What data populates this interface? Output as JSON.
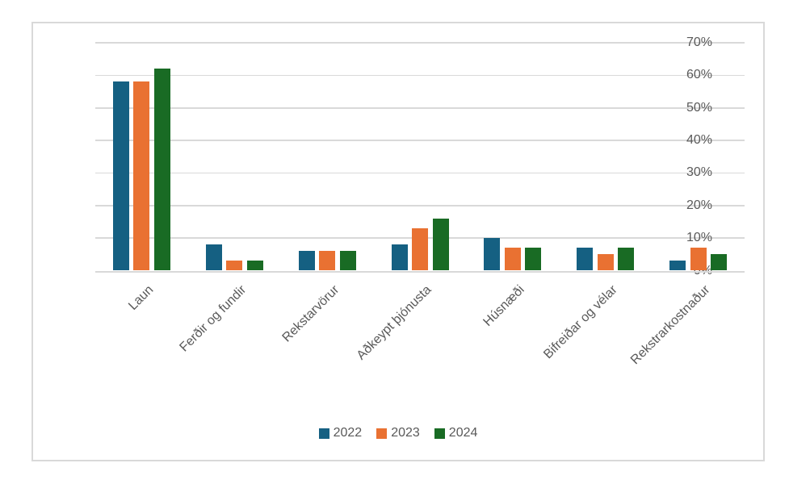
{
  "chart_data": {
    "type": "bar",
    "title": "",
    "categories": [
      "Laun",
      "Ferðir og fundir",
      "Rekstarvörur",
      "Aðkeypt þjónusta",
      "Húsnæði",
      "Bifreiðar og vélar",
      "Rekstrarkostnaður"
    ],
    "series": [
      {
        "name": "2022",
        "color": "#156082",
        "values": [
          58,
          8,
          6,
          8,
          10,
          7,
          3
        ]
      },
      {
        "name": "2023",
        "color": "#E97132",
        "values": [
          58,
          3,
          6,
          13,
          7,
          5,
          7
        ]
      },
      {
        "name": "2024",
        "color": "#196B24",
        "values": [
          62,
          3,
          6,
          16,
          7,
          7,
          5
        ]
      }
    ],
    "y_axis": {
      "ticks": [
        "0%",
        "10%",
        "20%",
        "30%",
        "40%",
        "50%",
        "60%",
        "70%"
      ],
      "min": 0,
      "max": 70,
      "step": 10,
      "unit": "%"
    },
    "x_label_rotation_deg": -45,
    "grid": true,
    "legend": {
      "position": "bottom",
      "items": [
        "2022",
        "2023",
        "2024"
      ]
    }
  },
  "colors": {
    "background": "#FFFFFF",
    "frame_border": "#D9D9D9",
    "gridline": "#D9D9D9",
    "axis_line": "#D9D9D9",
    "text": "#595959"
  }
}
